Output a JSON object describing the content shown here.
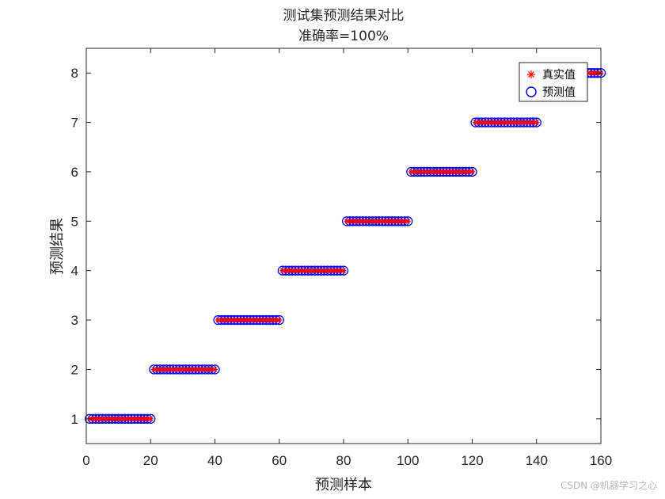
{
  "chart_data": {
    "type": "scatter",
    "title": [
      "测试集预测结果对比",
      "准确率=100%"
    ],
    "xlabel": "预测样本",
    "ylabel": "预测结果",
    "xlim": [
      0,
      160
    ],
    "ylim": [
      0.5,
      8.5
    ],
    "xticks": [
      0,
      20,
      40,
      60,
      80,
      100,
      120,
      140,
      160
    ],
    "yticks": [
      1,
      2,
      3,
      4,
      5,
      6,
      7,
      8
    ],
    "grid": false,
    "legend_position": "top-right",
    "series": [
      {
        "name": "真实值",
        "marker": "asterisk",
        "color": "#ff0000",
        "segments": [
          {
            "x_start": 1,
            "x_end": 20,
            "y": 1
          },
          {
            "x_start": 21,
            "x_end": 40,
            "y": 2
          },
          {
            "x_start": 41,
            "x_end": 60,
            "y": 3
          },
          {
            "x_start": 61,
            "x_end": 80,
            "y": 4
          },
          {
            "x_start": 81,
            "x_end": 100,
            "y": 5
          },
          {
            "x_start": 101,
            "x_end": 120,
            "y": 6
          },
          {
            "x_start": 121,
            "x_end": 140,
            "y": 7
          },
          {
            "x_start": 156,
            "x_end": 160,
            "y": 8
          }
        ]
      },
      {
        "name": "预测值",
        "marker": "circle",
        "color": "#0000ff",
        "segments": [
          {
            "x_start": 1,
            "x_end": 20,
            "y": 1
          },
          {
            "x_start": 21,
            "x_end": 40,
            "y": 2
          },
          {
            "x_start": 41,
            "x_end": 60,
            "y": 3
          },
          {
            "x_start": 61,
            "x_end": 80,
            "y": 4
          },
          {
            "x_start": 81,
            "x_end": 100,
            "y": 5
          },
          {
            "x_start": 101,
            "x_end": 120,
            "y": 6
          },
          {
            "x_start": 121,
            "x_end": 140,
            "y": 7
          },
          {
            "x_start": 156,
            "x_end": 160,
            "y": 8
          }
        ]
      }
    ]
  },
  "watermark": "CSDN @机器学习之心"
}
